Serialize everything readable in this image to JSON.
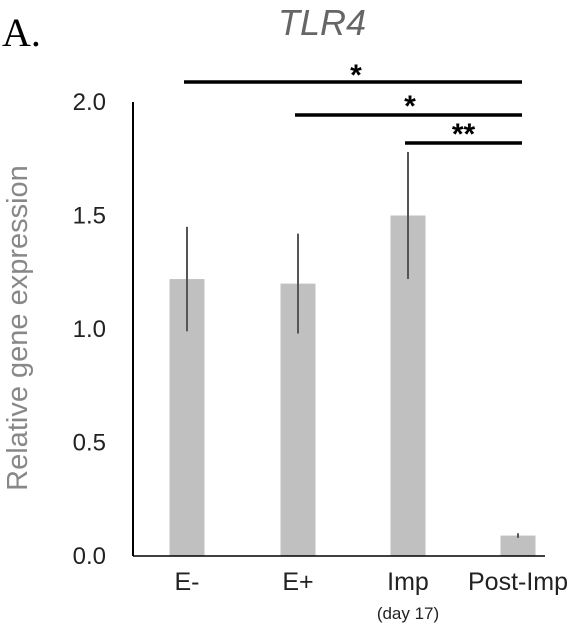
{
  "panel_letter": "A.",
  "chart_data": {
    "type": "bar",
    "title": "TLR4",
    "ylabel": "Relative gene expression",
    "xlabel": "",
    "categories": [
      "E-",
      "E+",
      "Imp",
      "Post-Imp"
    ],
    "category_sublabels": [
      "",
      "",
      "(day 17)",
      ""
    ],
    "values": [
      1.22,
      1.2,
      1.5,
      0.09
    ],
    "error_low": [
      0.99,
      0.98,
      1.22,
      0.08
    ],
    "error_high": [
      1.45,
      1.42,
      1.78,
      0.1
    ],
    "ylim": [
      0,
      2.0
    ],
    "yticks": [
      "0.0",
      "0.5",
      "1.0",
      "1.5",
      "2.0"
    ],
    "bar_color": "#c0c0c0",
    "error_color": "#555555",
    "grid": false,
    "legend": "none",
    "significance": [
      {
        "from": "E-",
        "to": "Post-Imp",
        "label": "*"
      },
      {
        "from": "E+",
        "to": "Post-Imp",
        "label": "*"
      },
      {
        "from": "Imp",
        "to": "Post-Imp",
        "label": "**"
      }
    ]
  }
}
